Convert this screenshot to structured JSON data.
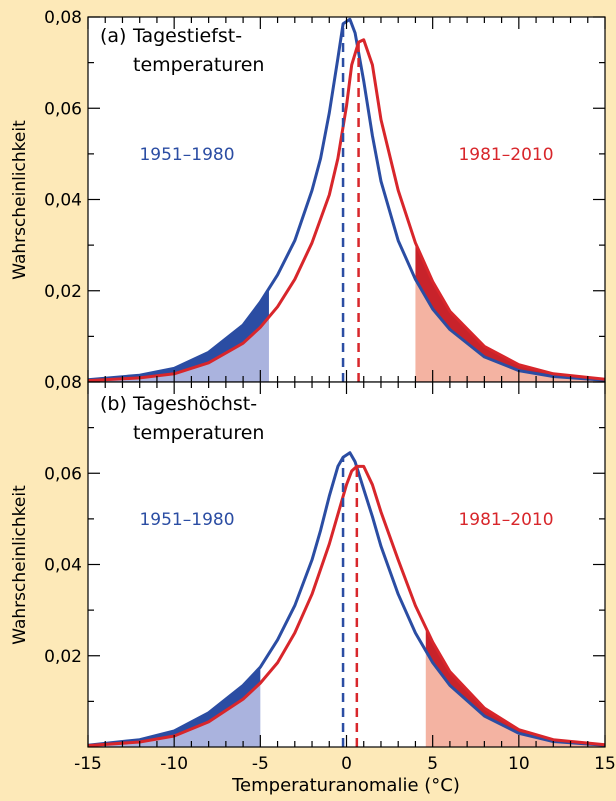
{
  "colors": {
    "background": "#fde9b8",
    "series_1951": "#2b4da3",
    "series_1981": "#d8262b",
    "tail_1951_fill": "#aab3de",
    "tail_1981_fill": "#f4b3a2",
    "tail_overlap_blue": "#2b4da3",
    "tail_overlap_red": "#c8232b"
  },
  "xlabel": "Temperaturanomalie (°C)",
  "chart_data": [
    {
      "type": "line",
      "panel_label": "(a)",
      "title_line1": "Tagestiefst-",
      "title_line2": "temperaturen",
      "ylabel": "Wahrscheinlichkeit",
      "xlim": [
        -15,
        15
      ],
      "ylim": [
        0,
        0.08
      ],
      "xticks": [
        -15,
        -10,
        -5,
        0,
        5,
        10,
        15
      ],
      "yticks": [
        0.02,
        0.04,
        0.06,
        0.08
      ],
      "ytick_labels": [
        "0,02",
        "0,04",
        "0,06",
        "0,08"
      ],
      "series": [
        {
          "name": "1951–1980",
          "mean": -0.2,
          "x": [
            -15,
            -12,
            -10,
            -8,
            -6,
            -5,
            -4,
            -3,
            -2,
            -1.5,
            -1,
            -0.5,
            -0.2,
            0.2,
            0.5,
            1,
            1.5,
            2,
            3,
            4,
            5,
            6,
            8,
            10,
            12,
            15
          ],
          "y": [
            0.0005,
            0.0015,
            0.003,
            0.0065,
            0.0125,
            0.0175,
            0.0235,
            0.031,
            0.042,
            0.049,
            0.059,
            0.071,
            0.0785,
            0.0795,
            0.0765,
            0.066,
            0.054,
            0.044,
            0.031,
            0.0225,
            0.016,
            0.0115,
            0.0055,
            0.0025,
            0.0012,
            0.0004
          ]
        },
        {
          "name": "1981–2010",
          "mean": 0.7,
          "x": [
            -15,
            -12,
            -10,
            -8,
            -6,
            -5,
            -4,
            -3,
            -2,
            -1,
            -0.5,
            0,
            0.3,
            0.7,
            1,
            1.5,
            2,
            3,
            4,
            5,
            6,
            8,
            10,
            12,
            15
          ],
          "y": [
            0.0003,
            0.0009,
            0.0018,
            0.0042,
            0.0085,
            0.012,
            0.0165,
            0.0225,
            0.0305,
            0.041,
            0.049,
            0.0605,
            0.0695,
            0.0745,
            0.075,
            0.0695,
            0.0575,
            0.042,
            0.0305,
            0.022,
            0.0155,
            0.0078,
            0.0038,
            0.0018,
            0.0006
          ]
        }
      ],
      "shaded_tails": {
        "cold_below": -4.5,
        "warm_above": 4.0
      }
    },
    {
      "type": "line",
      "panel_label": "(b)",
      "title_line1": "Tageshöchst-",
      "title_line2": "temperaturen",
      "ylabel": "Wahrscheinlichkeit",
      "xlim": [
        -15,
        15
      ],
      "ylim": [
        0,
        0.08
      ],
      "xticks": [
        -15,
        -10,
        -5,
        0,
        5,
        10,
        15
      ],
      "xtick_labels": [
        "-15",
        "-10",
        "-5",
        "0",
        "5",
        "10",
        "15"
      ],
      "yticks": [
        0.02,
        0.04,
        0.06,
        0.08
      ],
      "ytick_labels": [
        "0,02",
        "0,04",
        "0,06",
        "0,08"
      ],
      "series": [
        {
          "name": "1951–1980",
          "mean": -0.2,
          "x": [
            -15,
            -12,
            -10,
            -8,
            -6,
            -5,
            -4,
            -3,
            -2,
            -1.5,
            -1,
            -0.5,
            -0.2,
            0.2,
            0.5,
            1,
            1.5,
            2,
            3,
            4,
            5,
            6,
            8,
            10,
            12,
            15
          ],
          "y": [
            0.0004,
            0.0016,
            0.0035,
            0.0075,
            0.0135,
            0.0175,
            0.0235,
            0.031,
            0.041,
            0.0475,
            0.055,
            0.0615,
            0.0635,
            0.0645,
            0.0625,
            0.0565,
            0.0505,
            0.044,
            0.0335,
            0.025,
            0.0185,
            0.0135,
            0.0068,
            0.003,
            0.0012,
            0.0004
          ]
        },
        {
          "name": "1981–2010",
          "mean": 0.6,
          "x": [
            -15,
            -12,
            -10,
            -8,
            -6,
            -5,
            -4,
            -3,
            -2,
            -1,
            -0.5,
            0,
            0.3,
            0.6,
            1,
            1.5,
            2,
            3,
            4,
            5,
            6,
            8,
            10,
            12,
            15
          ],
          "y": [
            0.0003,
            0.0011,
            0.0024,
            0.0055,
            0.0105,
            0.014,
            0.0185,
            0.025,
            0.0335,
            0.0445,
            0.051,
            0.0575,
            0.0605,
            0.0615,
            0.0615,
            0.0575,
            0.0515,
            0.041,
            0.031,
            0.023,
            0.0165,
            0.0085,
            0.0038,
            0.0016,
            0.0005
          ]
        }
      ],
      "shaded_tails": {
        "cold_below": -5.0,
        "warm_above": 4.6
      }
    }
  ]
}
